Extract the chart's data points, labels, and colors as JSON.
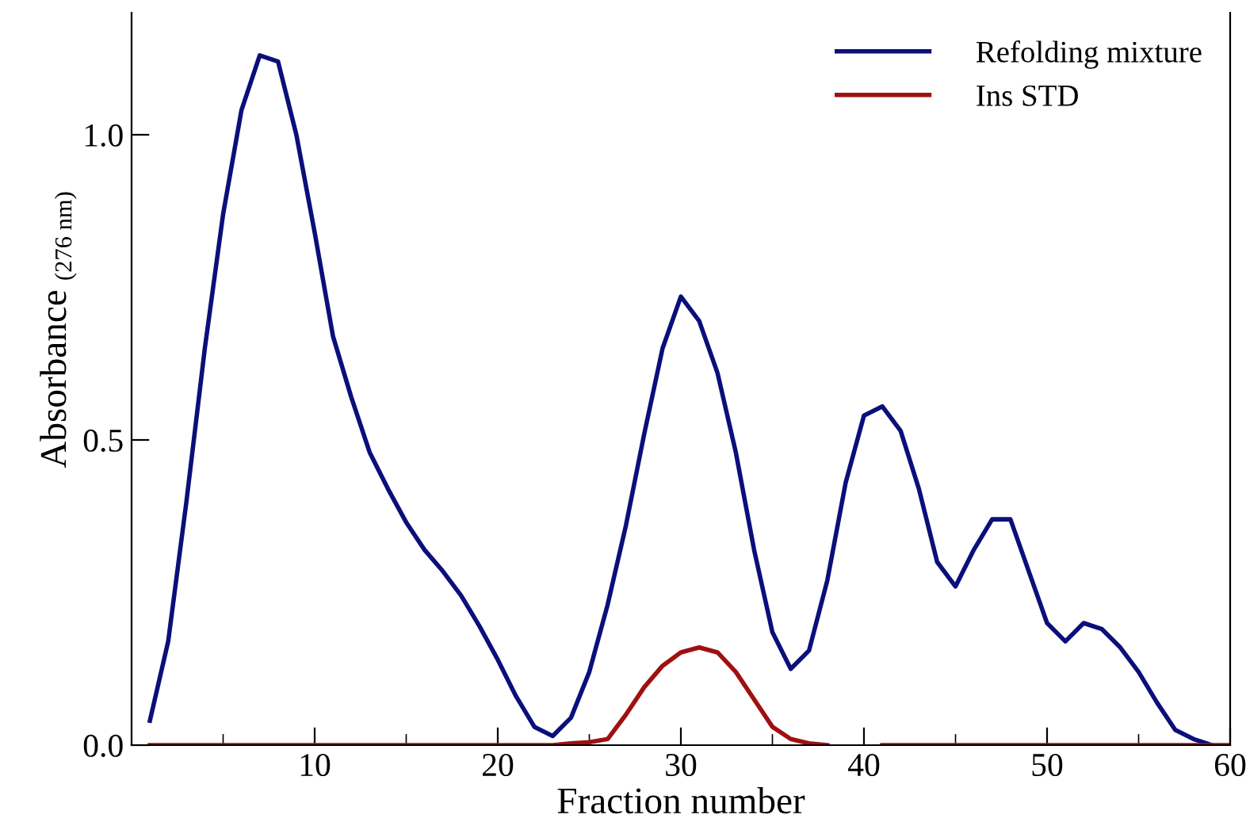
{
  "chart_data": {
    "type": "line",
    "xlabel": "Fraction number",
    "ylabel": "Absorbance $_{(276 nm)}$",
    "x": [
      1,
      2,
      3,
      4,
      5,
      6,
      7,
      8,
      9,
      10,
      11,
      12,
      13,
      14,
      15,
      16,
      17,
      18,
      19,
      20,
      21,
      22,
      23,
      24,
      25,
      26,
      27,
      28,
      29,
      30,
      31,
      32,
      33,
      34,
      35,
      36,
      37,
      38,
      39,
      40,
      41,
      42,
      43,
      44,
      45,
      46,
      47,
      48,
      49,
      50,
      51,
      52,
      53,
      54,
      55,
      56,
      57,
      58,
      59,
      60
    ],
    "series": [
      {
        "name": "Refolding mixture",
        "color": "#0a0f7a",
        "values": [
          0.04,
          0.17,
          0.4,
          0.65,
          0.87,
          1.04,
          1.13,
          1.12,
          1.0,
          0.84,
          0.67,
          0.57,
          0.48,
          0.42,
          0.365,
          0.32,
          0.285,
          0.245,
          0.195,
          0.14,
          0.08,
          0.03,
          0.015,
          0.045,
          0.12,
          0.23,
          0.36,
          0.51,
          0.65,
          0.735,
          0.695,
          0.61,
          0.48,
          0.32,
          0.185,
          0.125,
          0.155,
          0.27,
          0.43,
          0.54,
          0.555,
          0.515,
          0.42,
          0.3,
          0.26,
          0.32,
          0.37,
          0.37,
          0.285,
          0.2,
          0.17,
          0.2,
          0.19,
          0.16,
          0.12,
          0.07,
          0.025,
          0.01,
          0.0,
          null
        ]
      },
      {
        "name": "Ins STD",
        "color": "#a01010",
        "values": [
          0,
          0,
          0,
          0,
          0,
          0,
          0,
          0,
          0,
          0,
          0,
          0,
          0,
          0,
          0,
          0,
          0,
          0,
          0,
          0,
          0,
          0,
          0,
          0.003,
          0.005,
          0.01,
          0.05,
          0.095,
          0.13,
          0.152,
          0.16,
          0.152,
          0.12,
          0.075,
          0.03,
          0.01,
          0.003,
          0,
          null,
          null,
          0,
          0,
          0,
          0,
          0,
          0,
          0,
          0,
          0,
          0,
          0,
          0,
          0,
          0,
          0,
          0,
          0,
          0,
          0,
          0
        ]
      }
    ],
    "xlim": [
      0,
      60
    ],
    "xticks": [
      10,
      20,
      30,
      40,
      50,
      60
    ],
    "ylim": [
      0,
      1.2
    ],
    "yticks": [
      {
        "value": 0,
        "label": "0.0"
      },
      0.5,
      {
        "value": 1,
        "label": "1.0"
      }
    ],
    "legend": "top right",
    "grid": false,
    "marker": "none",
    "line_style": "solid"
  }
}
